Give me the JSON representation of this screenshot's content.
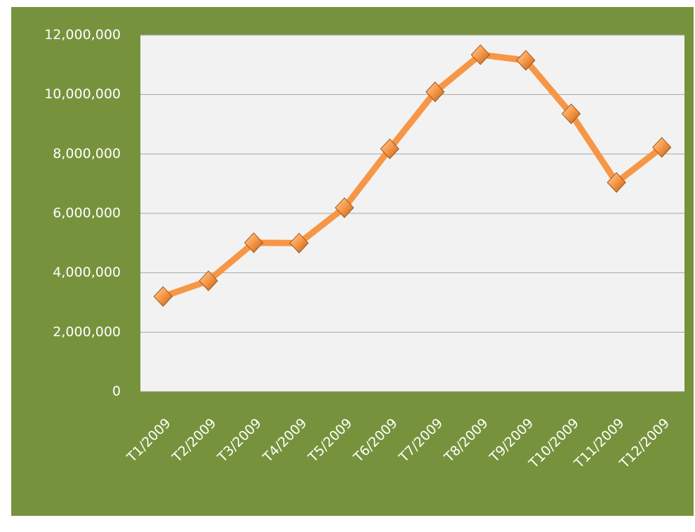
{
  "chart_data": {
    "type": "line",
    "categories": [
      "T1/2009",
      "T2/2009",
      "T3/2009",
      "T4/2009",
      "T5/2009",
      "T6/2009",
      "T7/2009",
      "T8/2009",
      "T9/2009",
      "T10/2009",
      "T11/2009",
      "T12/2009"
    ],
    "series": [
      {
        "color": "#f79646",
        "values": [
          3200000,
          3730000,
          5010000,
          5000000,
          6190000,
          8170000,
          10090000,
          11340000,
          11150000,
          9350000,
          7040000,
          8220000
        ]
      }
    ],
    "ylim": [
      0,
      12000000
    ],
    "yticks": [
      0,
      {
        "value": 2000000,
        "label": "2,000,000"
      },
      {
        "value": 4000000,
        "label": "4,000,000"
      },
      {
        "value": 6000000,
        "label": "6,000,000"
      },
      {
        "value": 8000000,
        "label": "8,000,000"
      },
      {
        "value": 10000000,
        "label": "10,000,000"
      },
      {
        "value": 12000000,
        "label": "12,000,000"
      }
    ],
    "grid": true
  }
}
